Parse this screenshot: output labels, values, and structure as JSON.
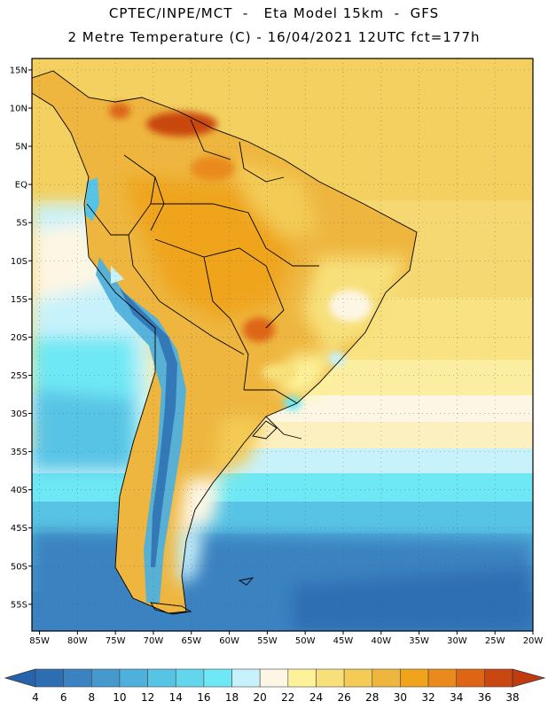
{
  "title": {
    "line1": "CPTEC/INPE/MCT  -   Eta Model 15km  -  GFS",
    "line2": "2 Metre Temperature (C) - 16/04/2021 12UTC fct=177h"
  },
  "map": {
    "region": "South America",
    "lat_labels": [
      "15N",
      "10N",
      "5N",
      "EQ",
      "5S",
      "10S",
      "15S",
      "20S",
      "25S",
      "30S",
      "35S",
      "40S",
      "45S",
      "50S",
      "55S"
    ],
    "lat_values": [
      15,
      10,
      5,
      0,
      -5,
      -10,
      -15,
      -20,
      -25,
      -30,
      -35,
      -40,
      -45,
      -50,
      -55
    ],
    "lon_labels": [
      "85W",
      "80W",
      "75W",
      "70W",
      "65W",
      "60W",
      "55W",
      "50W",
      "45W",
      "40W",
      "35W",
      "30W",
      "25W",
      "20W"
    ],
    "lon_values": [
      -85,
      -80,
      -75,
      -70,
      -65,
      -60,
      -55,
      -50,
      -45,
      -40,
      -35,
      -30,
      -25,
      -20
    ],
    "lon_range": [
      -86,
      -20
    ],
    "lat_range": [
      -58.5,
      16.5
    ]
  },
  "colorbar": {
    "labels": [
      "4",
      "6",
      "8",
      "10",
      "12",
      "14",
      "16",
      "18",
      "20",
      "22",
      "24",
      "26",
      "28",
      "30",
      "32",
      "34",
      "36",
      "38"
    ],
    "colors": [
      "#2d6eb2",
      "#3a82c0",
      "#4599cd",
      "#4fb0dc",
      "#58c4e5",
      "#62d6ec",
      "#6ee8f4",
      "#c8f2fb",
      "#fdf6e4",
      "#fdf29a",
      "#f7e07a",
      "#f3cb55",
      "#eeb63f",
      "#efa41c",
      "#ea8a1d",
      "#de6515",
      "#c94710"
    ],
    "end_low_color": "#2563ad",
    "end_high_color": "#c03c0e"
  }
}
